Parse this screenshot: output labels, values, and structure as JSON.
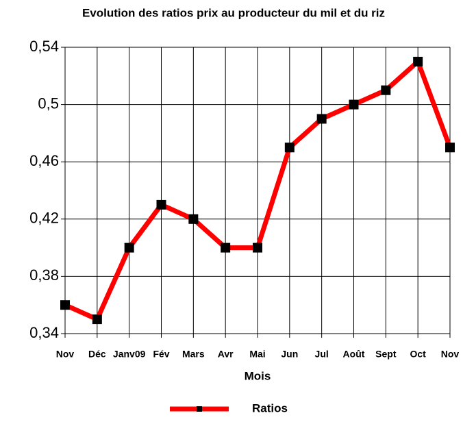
{
  "chart_data": {
    "type": "line",
    "title": "Evolution des ratios prix au producteur du mil et du riz",
    "x_label": "Mois",
    "categories": [
      "Nov",
      "Déc",
      "Janv09",
      "Fév",
      "Mars",
      "Avr",
      "Mai",
      "Jun",
      "Jul",
      "Août",
      "Sept",
      "Oct",
      "Nov"
    ],
    "series": [
      {
        "name": "Ratios",
        "color": "#ff0000",
        "marker_color": "#000000",
        "values": [
          0.36,
          0.35,
          0.4,
          0.43,
          0.42,
          0.4,
          0.4,
          0.47,
          0.49,
          0.5,
          0.51,
          0.53,
          0.47
        ]
      }
    ],
    "ylim": [
      0.34,
      0.54
    ],
    "yticks": [
      {
        "value": 0.34,
        "label": "0,34"
      },
      {
        "value": 0.38,
        "label": "0,38"
      },
      {
        "value": 0.42,
        "label": "0,42"
      },
      {
        "value": 0.46,
        "label": "0,46"
      },
      {
        "value": 0.5,
        "label": "0,5"
      },
      {
        "value": 0.54,
        "label": "0,54"
      }
    ],
    "grid": true
  }
}
